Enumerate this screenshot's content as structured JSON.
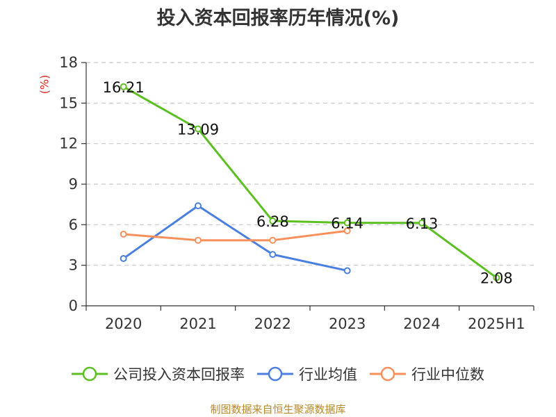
{
  "title": "投入资本回报率历年情况(%)",
  "unit_label": "(%)",
  "source": "制图数据来自恒生聚源数据库",
  "colors": {
    "company": "#5cbf22",
    "industry_avg": "#4a7fe0",
    "industry_median": "#f7905a",
    "axis": "#333333",
    "grid": "#c8c8c8",
    "unit": "#e0261d",
    "source": "#b8892a"
  },
  "chart_data": {
    "type": "line",
    "categories": [
      "2020",
      "2021",
      "2022",
      "2023",
      "2024",
      "2025H1"
    ],
    "ylim": [
      0,
      18
    ],
    "yticks": [
      0,
      3,
      6,
      9,
      12,
      15,
      18
    ],
    "grid": true,
    "legend_position": "bottom",
    "series": [
      {
        "name": "公司投入资本回报率",
        "values": [
          16.21,
          13.09,
          6.28,
          6.14,
          6.13,
          2.08
        ],
        "labels": [
          "16.21",
          "13.09",
          "6.28",
          "6.14",
          "6.13",
          "2.08"
        ],
        "color": "#5cbf22"
      },
      {
        "name": "行业均值",
        "values": [
          3.5,
          7.4,
          3.8,
          2.6,
          null,
          null
        ],
        "color": "#4a7fe0"
      },
      {
        "name": "行业中位数",
        "values": [
          5.3,
          4.85,
          4.85,
          5.55,
          null,
          null
        ],
        "color": "#f7905a"
      }
    ]
  }
}
